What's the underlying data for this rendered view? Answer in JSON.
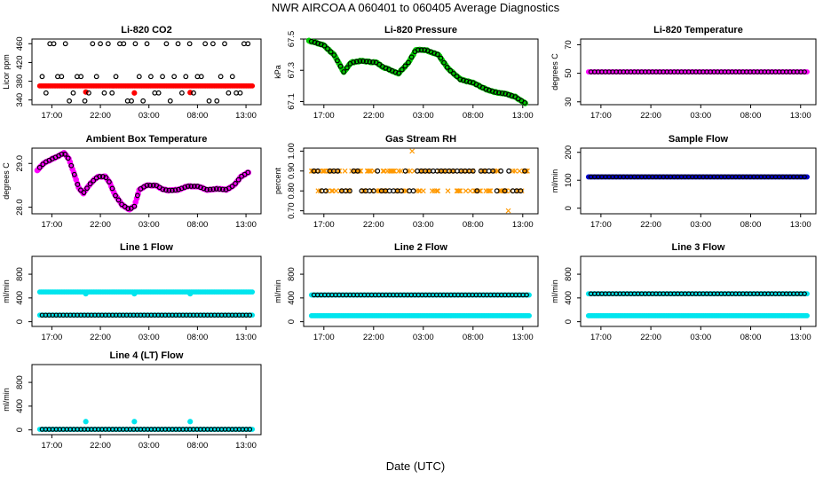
{
  "title": "NWR   AIRCOA A   060401 to 060405   Average Diagnostics",
  "xlabel": "Date (UTC)",
  "time_ticks": [
    "17:00",
    "22:00",
    "03:00",
    "08:00",
    "13:00"
  ],
  "chart_data": [
    {
      "type": "scatter",
      "title": "Li-820 CO2",
      "ylabel": "Licor ppm",
      "yticks": [
        "340",
        "380",
        "420",
        "460"
      ],
      "ylim": [
        330,
        470
      ],
      "series": [
        {
          "name": "red",
          "color": "#ff0000",
          "pattern": "flat",
          "value": 370,
          "mark": "filled",
          "spikes": [
            [
              20,
              357
            ],
            [
              40,
              355
            ],
            [
              63,
              356
            ]
          ]
        },
        {
          "name": "black",
          "color": "#000000",
          "pattern": "levels",
          "levels": [
            460,
            390,
            355,
            338
          ]
        }
      ]
    },
    {
      "type": "scatter",
      "title": "Li-820 Pressure",
      "ylabel": "kPa",
      "yticks": [
        "67.1",
        "67.3",
        "67.5"
      ],
      "ylim": [
        67.08,
        67.5
      ],
      "series": [
        {
          "name": "green",
          "color": "#00cc00",
          "pattern": "curve",
          "mark": "filled",
          "points": [
            [
              0,
              67.49
            ],
            [
              6,
              67.46
            ],
            [
              10,
              67.4
            ],
            [
              14,
              67.29
            ],
            [
              17,
              67.35
            ],
            [
              21,
              67.36
            ],
            [
              27,
              67.35
            ],
            [
              30,
              67.32
            ],
            [
              33,
              67.3
            ],
            [
              36,
              67.28
            ],
            [
              40,
              67.35
            ],
            [
              43,
              67.43
            ],
            [
              47,
              67.43
            ],
            [
              52,
              67.4
            ],
            [
              56,
              67.31
            ],
            [
              61,
              67.24
            ],
            [
              66,
              67.22
            ],
            [
              71,
              67.18
            ],
            [
              75,
              67.16
            ],
            [
              79,
              67.15
            ],
            [
              83,
              67.13
            ],
            [
              87,
              67.09
            ]
          ]
        },
        {
          "name": "black",
          "color": "#000000",
          "pattern": "curve_sparse"
        }
      ]
    },
    {
      "type": "scatter",
      "title": "Li-820 Temperature",
      "ylabel": "degrees C",
      "yticks": [
        "30",
        "50",
        "70"
      ],
      "ylim": [
        28,
        74
      ],
      "series": [
        {
          "name": "magenta",
          "color": "#ff00ff",
          "pattern": "flat",
          "value": 51,
          "mark": "filled"
        },
        {
          "name": "black",
          "color": "#000000",
          "pattern": "flat_sparse",
          "value": 51
        }
      ]
    },
    {
      "type": "scatter",
      "title": "Ambient Box Temperature",
      "ylabel": "degrees C",
      "yticks": [
        "28.0",
        "29.0"
      ],
      "ylim": [
        27.85,
        29.35
      ],
      "series": [
        {
          "name": "magenta",
          "color": "#ff00ff",
          "pattern": "curve",
          "mark": "filled",
          "points": [
            [
              0,
              28.85
            ],
            [
              3,
              29.02
            ],
            [
              6,
              29.1
            ],
            [
              9,
              29.18
            ],
            [
              11,
              29.24
            ],
            [
              13,
              29.1
            ],
            [
              15,
              28.8
            ],
            [
              17,
              28.45
            ],
            [
              19,
              28.32
            ],
            [
              22,
              28.55
            ],
            [
              25,
              28.7
            ],
            [
              28,
              28.7
            ],
            [
              30,
              28.55
            ],
            [
              32,
              28.28
            ],
            [
              35,
              28.05
            ],
            [
              38,
              27.95
            ],
            [
              40,
              28.02
            ],
            [
              42,
              28.4
            ],
            [
              45,
              28.5
            ],
            [
              49,
              28.5
            ],
            [
              52,
              28.4
            ],
            [
              55,
              28.38
            ],
            [
              58,
              28.4
            ],
            [
              62,
              28.48
            ],
            [
              66,
              28.48
            ],
            [
              70,
              28.4
            ],
            [
              74,
              28.42
            ],
            [
              78,
              28.4
            ],
            [
              81,
              28.5
            ],
            [
              84,
              28.7
            ],
            [
              87,
              28.8
            ]
          ]
        },
        {
          "name": "black",
          "color": "#000000",
          "pattern": "curve_sparse"
        }
      ]
    },
    {
      "type": "scatter",
      "title": "Gas Stream RH",
      "ylabel": "percent",
      "yticks": [
        "0.70",
        "0.80",
        "0.90",
        "1.00"
      ],
      "ylim": [
        0.685,
        1.015
      ],
      "series": [
        {
          "name": "orange",
          "color": "#ff9900",
          "pattern": "levels",
          "levels": [
            1.0,
            0.9,
            0.8,
            0.7
          ],
          "mark": "x"
        },
        {
          "name": "black",
          "color": "#000000",
          "pattern": "levels",
          "levels": [
            0.9,
            0.8
          ]
        }
      ]
    },
    {
      "type": "scatter",
      "title": "Sample Flow",
      "ylabel": "ml/min",
      "yticks": [
        "0",
        "100",
        "200"
      ],
      "ylim": [
        -20,
        215
      ],
      "series": [
        {
          "name": "blue",
          "color": "#0000cc",
          "pattern": "flat",
          "value": 112,
          "mark": "filled"
        },
        {
          "name": "black",
          "color": "#000000",
          "pattern": "flat_sparse",
          "value": 112
        }
      ]
    },
    {
      "type": "scatter",
      "title": "Line 1 Flow",
      "ylabel": "ml/min",
      "yticks": [
        "0",
        "400",
        "800"
      ],
      "ylim": [
        -80,
        1100
      ],
      "series": [
        {
          "name": "cyan",
          "color": "#00e5ee",
          "pattern": "flat",
          "value": 500,
          "mark": "filled",
          "spikes": [
            [
              20,
              470
            ],
            [
              40,
              470
            ],
            [
              63,
              470
            ]
          ]
        },
        {
          "name": "cyan_low",
          "color": "#00e5ee",
          "pattern": "flat",
          "value": 110,
          "mark": "filled"
        },
        {
          "name": "black",
          "color": "#000000",
          "pattern": "flat_sparse",
          "value": 110
        }
      ]
    },
    {
      "type": "scatter",
      "title": "Line 2 Flow",
      "ylabel": "ml/min",
      "yticks": [
        "0",
        "400",
        "800"
      ],
      "ylim": [
        -80,
        1100
      ],
      "series": [
        {
          "name": "cyan",
          "color": "#00e5ee",
          "pattern": "flat",
          "value": 100,
          "mark": "filled"
        },
        {
          "name": "cyan_high",
          "color": "#00e5ee",
          "pattern": "flat",
          "value": 450,
          "mark": "filled"
        },
        {
          "name": "black",
          "color": "#000000",
          "pattern": "flat_sparse",
          "value": 450
        }
      ]
    },
    {
      "type": "scatter",
      "title": "Line 3 Flow",
      "ylabel": "ml/min",
      "yticks": [
        "0",
        "400",
        "800"
      ],
      "ylim": [
        -80,
        1100
      ],
      "series": [
        {
          "name": "cyan",
          "color": "#00e5ee",
          "pattern": "flat",
          "value": 100,
          "mark": "filled"
        },
        {
          "name": "cyan_high",
          "color": "#00e5ee",
          "pattern": "flat",
          "value": 470,
          "mark": "filled"
        },
        {
          "name": "black",
          "color": "#000000",
          "pattern": "flat_sparse",
          "value": 470
        }
      ]
    },
    {
      "type": "scatter",
      "title": "Line 4 (LT) Flow",
      "ylabel": "ml/min",
      "yticks": [
        "0",
        "400",
        "800"
      ],
      "ylim": [
        -80,
        1100
      ],
      "series": [
        {
          "name": "cyan",
          "color": "#00e5ee",
          "pattern": "flat",
          "value": 10,
          "mark": "filled",
          "spikes": [
            [
              20,
              140
            ],
            [
              40,
              140
            ],
            [
              63,
              140
            ]
          ]
        },
        {
          "name": "black",
          "color": "#000000",
          "pattern": "flat_sparse",
          "value": 10
        }
      ]
    }
  ]
}
